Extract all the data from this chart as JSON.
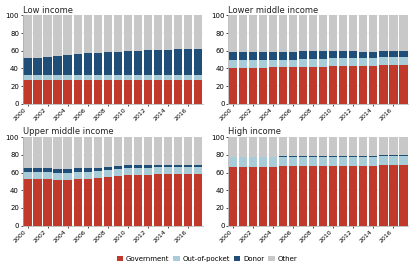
{
  "subplots": [
    {
      "title": "Low income",
      "years": [
        2000,
        2001,
        2002,
        2003,
        2004,
        2005,
        2006,
        2007,
        2008,
        2009,
        2010,
        2011,
        2012,
        2013,
        2014,
        2015,
        2016,
        2017
      ],
      "government": [
        27,
        27,
        27,
        27,
        27,
        27,
        27,
        27,
        27,
        27,
        27,
        27,
        27,
        27,
        27,
        27,
        27,
        27
      ],
      "out_of_pocket": [
        5,
        5,
        5,
        5,
        5,
        5,
        5,
        5,
        5,
        5,
        5,
        5,
        5,
        5,
        5,
        5,
        5,
        5
      ],
      "donor": [
        20,
        20,
        21,
        22,
        23,
        24,
        25,
        25,
        26,
        27,
        28,
        28,
        29,
        29,
        29,
        30,
        30,
        30
      ],
      "other": [
        48,
        48,
        47,
        46,
        45,
        44,
        43,
        43,
        42,
        41,
        40,
        40,
        39,
        39,
        39,
        38,
        38,
        38
      ]
    },
    {
      "title": "Lower middle income",
      "years": [
        2000,
        2001,
        2002,
        2003,
        2004,
        2005,
        2006,
        2007,
        2008,
        2009,
        2010,
        2011,
        2012,
        2013,
        2014,
        2015,
        2016,
        2017
      ],
      "government": [
        40,
        40,
        40,
        40,
        41,
        41,
        41,
        42,
        42,
        42,
        43,
        43,
        43,
        43,
        43,
        44,
        44,
        44
      ],
      "out_of_pocket": [
        9,
        9,
        9,
        9,
        9,
        9,
        9,
        9,
        9,
        9,
        9,
        9,
        9,
        9,
        9,
        9,
        9,
        9
      ],
      "donor": [
        9,
        9,
        9,
        9,
        9,
        9,
        9,
        9,
        9,
        9,
        8,
        8,
        8,
        7,
        7,
        7,
        7,
        7
      ],
      "other": [
        42,
        42,
        42,
        42,
        41,
        41,
        41,
        40,
        40,
        40,
        40,
        40,
        40,
        41,
        41,
        40,
        40,
        40
      ]
    },
    {
      "title": "Upper middle income",
      "years": [
        2000,
        2001,
        2002,
        2003,
        2004,
        2005,
        2006,
        2007,
        2008,
        2009,
        2010,
        2011,
        2012,
        2013,
        2014,
        2015,
        2016,
        2017
      ],
      "government": [
        53,
        53,
        53,
        52,
        52,
        53,
        53,
        54,
        55,
        56,
        57,
        57,
        57,
        58,
        58,
        58,
        58,
        58
      ],
      "out_of_pocket": [
        8,
        8,
        8,
        8,
        8,
        8,
        8,
        8,
        8,
        8,
        8,
        8,
        8,
        8,
        8,
        8,
        8,
        8
      ],
      "donor": [
        4,
        4,
        4,
        4,
        4,
        4,
        4,
        3,
        3,
        3,
        3,
        3,
        3,
        3,
        3,
        3,
        3,
        3
      ],
      "other": [
        35,
        35,
        35,
        36,
        36,
        35,
        35,
        35,
        34,
        33,
        32,
        32,
        32,
        31,
        31,
        31,
        31,
        31
      ]
    },
    {
      "title": "High income",
      "years": [
        2000,
        2001,
        2002,
        2003,
        2004,
        2005,
        2006,
        2007,
        2008,
        2009,
        2010,
        2011,
        2012,
        2013,
        2014,
        2015,
        2016,
        2017
      ],
      "government": [
        66,
        66,
        66,
        66,
        66,
        67,
        67,
        67,
        67,
        67,
        67,
        67,
        67,
        67,
        67,
        68,
        68,
        68
      ],
      "out_of_pocket": [
        11,
        11,
        11,
        11,
        11,
        11,
        11,
        11,
        11,
        11,
        11,
        11,
        11,
        11,
        11,
        11,
        11,
        11
      ],
      "donor": [
        1,
        1,
        1,
        1,
        1,
        1,
        1,
        1,
        1,
        1,
        1,
        1,
        1,
        1,
        1,
        1,
        1,
        1
      ],
      "other": [
        22,
        22,
        22,
        22,
        22,
        21,
        21,
        21,
        21,
        21,
        21,
        21,
        21,
        21,
        21,
        20,
        20,
        20
      ]
    }
  ],
  "colors": {
    "government": "#c0392b",
    "out_of_pocket": "#a8cdd8",
    "donor": "#1f4e79",
    "other": "#c8c8c8"
  },
  "ylim": [
    0,
    100
  ],
  "yticks": [
    0,
    20,
    40,
    60,
    80,
    100
  ],
  "background_color": "#ffffff"
}
